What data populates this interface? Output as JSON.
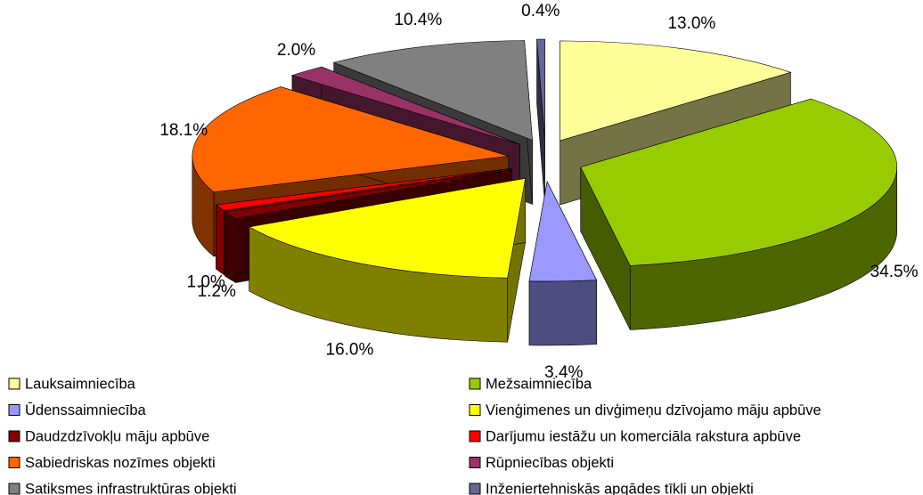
{
  "chart_data": {
    "type": "pie3d",
    "categories": [
      "Lauksaimniecība",
      "Mežsaimniecība",
      "Ūdenssaimniecība",
      "Vienģimenes un divģimeņu dzīvojamo māju apbūve",
      "Daudzdzīvokļu māju apbūve",
      "Darījumu iestāžu un komerciāla rakstura apbūve",
      "Sabiedriskas nozīmes objekti",
      "Rūpniecības objekti",
      "Satiksmes infrastruktūras objekti",
      "Inženiertehniskās apgādes tīkli un objekti"
    ],
    "values": [
      13.0,
      34.5,
      3.4,
      16.0,
      1.2,
      1.0,
      18.1,
      2.0,
      10.4,
      0.4
    ],
    "value_labels": [
      "13.0%",
      "34.5%",
      "3.4%",
      "16.0%",
      "1.2%",
      "1.0%",
      "18.1%",
      "2.0%",
      "10.4%",
      "0.4%"
    ],
    "colors": [
      "#FFFF99",
      "#99CC00",
      "#9999FF",
      "#FFFF00",
      "#800000",
      "#FF0000",
      "#FF6600",
      "#993366",
      "#808080",
      "#666699"
    ]
  }
}
